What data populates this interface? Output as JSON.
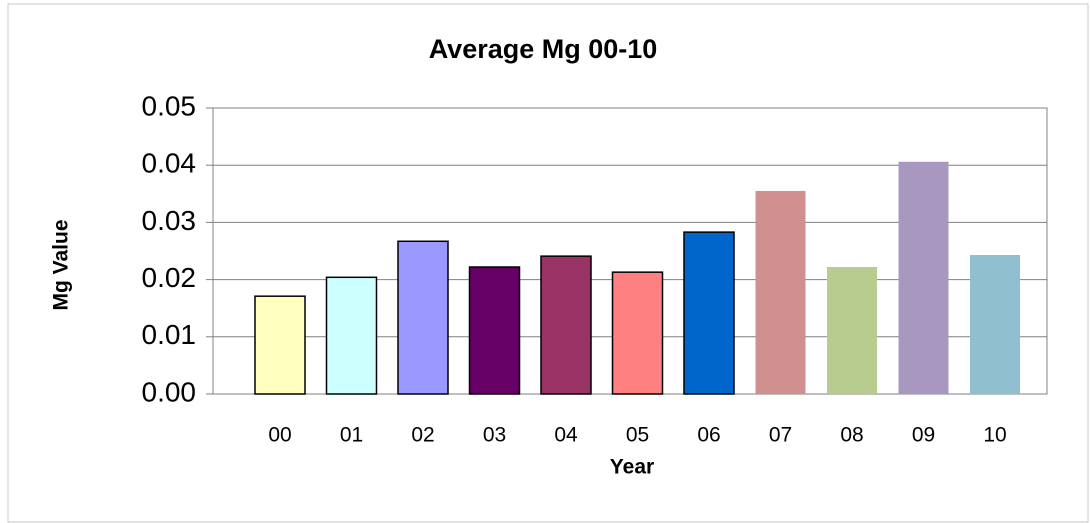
{
  "chart_data": {
    "type": "bar",
    "title": "Average Mg 00-10",
    "x_label": "Year",
    "y_label": "Mg Value",
    "categories": [
      "00",
      "01",
      "02",
      "03",
      "04",
      "05",
      "06",
      "07",
      "08",
      "09",
      "10"
    ],
    "values": [
      0.0171,
      0.0204,
      0.0267,
      0.0222,
      0.0241,
      0.0213,
      0.0283,
      0.0355,
      0.0222,
      0.0406,
      0.0243
    ],
    "colors": [
      "#ffffc0",
      "#ccffff",
      "#9999ff",
      "#660066",
      "#993366",
      "#ff8080",
      "#0066cc",
      "#d09090",
      "#b8cc90",
      "#a898c0",
      "#90c0d0"
    ],
    "edge_colors": [
      "#000000",
      "#000000",
      "#000000",
      "#000000",
      "#000000",
      "#000000",
      "#000000",
      "none",
      "none",
      "none",
      "none"
    ],
    "ylim": [
      0,
      0.05
    ],
    "yticks": [
      {
        "value": 0,
        "label": "0.00"
      },
      0.01,
      0.02,
      0.03,
      0.04,
      0.05
    ],
    "grid": true
  }
}
